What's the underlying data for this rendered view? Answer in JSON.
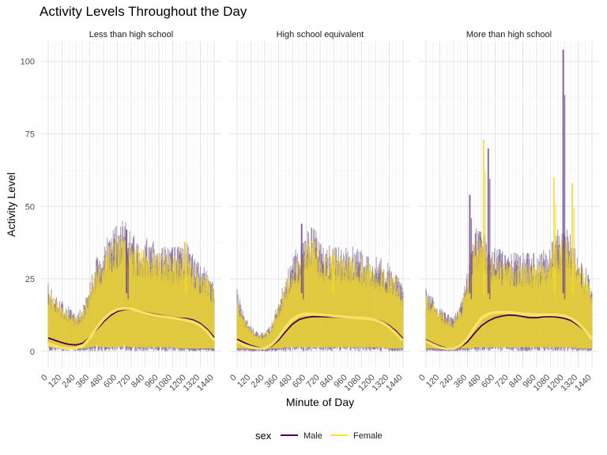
{
  "chart_data": {
    "type": "line",
    "title": "Activity Levels Throughout the Day",
    "xlabel": "Minute of Day",
    "ylabel": "Activity Level",
    "xlim": [
      0,
      1440
    ],
    "ylim": [
      0,
      100
    ],
    "x_ticks": [
      0,
      120,
      240,
      360,
      480,
      600,
      720,
      840,
      960,
      1080,
      1200,
      1320,
      1440
    ],
    "x_tick_labels": [
      "0",
      "120",
      "240",
      "360",
      "480",
      "600",
      "720",
      "840",
      "960",
      "1080",
      "1200",
      "1320",
      "1440"
    ],
    "y_ticks": [
      0,
      25,
      50,
      75,
      100
    ],
    "y_tick_labels": [
      "0",
      "25",
      "50",
      "75",
      "100"
    ],
    "grid": true,
    "legend": {
      "title": "sex",
      "position": "bottom",
      "entries": [
        "Male",
        "Female"
      ]
    },
    "colors": {
      "Male": "#440154",
      "Female": "#fde725",
      "smooth_male": "#440154",
      "smooth_female": "#fde725"
    },
    "panels": [
      {
        "label": "Less than high school",
        "raw_envelope": {
          "x": [
            0,
            60,
            120,
            180,
            240,
            300,
            360,
            420,
            480,
            540,
            600,
            660,
            720,
            780,
            840,
            900,
            960,
            1020,
            1080,
            1140,
            1200,
            1260,
            1320,
            1380,
            1440
          ],
          "upper": [
            22,
            18,
            16,
            14,
            12,
            14,
            22,
            30,
            34,
            38,
            40,
            42,
            38,
            36,
            36,
            35,
            34,
            34,
            33,
            33,
            36,
            30,
            28,
            26,
            22
          ],
          "lower": [
            2,
            2,
            1,
            1,
            1,
            1,
            2,
            3,
            2,
            2,
            2,
            3,
            2,
            2,
            2,
            2,
            2,
            2,
            2,
            1,
            1,
            1,
            1,
            1,
            1
          ],
          "peak_spikes": [
            {
              "x": 680,
              "y": 42
            },
            {
              "x": 1190,
              "y": 38
            }
          ]
        },
        "series": [
          {
            "name": "Male",
            "x": [
              0,
              60,
              120,
              180,
              240,
              300,
              360,
              420,
              480,
              540,
              600,
              660,
              720,
              780,
              840,
              900,
              960,
              1020,
              1080,
              1140,
              1200,
              1260,
              1320,
              1380,
              1440
            ],
            "values": [
              4.6,
              3.8,
              3.0,
              2.4,
              2.2,
              2.8,
              4.8,
              7.5,
              10.2,
              12.4,
              13.8,
              14.4,
              14.5,
              14.1,
              13.5,
              13.0,
              12.6,
              12.2,
              11.8,
              11.5,
              11.3,
              10.8,
              9.6,
              7.6,
              4.8
            ]
          },
          {
            "name": "Female",
            "x": [
              0,
              60,
              120,
              180,
              240,
              300,
              360,
              420,
              480,
              540,
              600,
              660,
              720,
              780,
              840,
              900,
              960,
              1020,
              1080,
              1140,
              1200,
              1260,
              1320,
              1380,
              1440
            ],
            "values": [
              2.6,
              1.8,
              1.2,
              0.9,
              1.0,
              2.0,
              4.6,
              8.0,
              11.0,
              13.2,
              14.4,
              14.8,
              14.6,
              14.0,
              13.3,
              12.7,
              12.3,
              12.0,
              11.6,
              11.2,
              10.8,
              10.2,
              9.0,
              6.9,
              3.9
            ]
          }
        ]
      },
      {
        "label": "High school equivalent",
        "raw_envelope": {
          "x": [
            0,
            60,
            120,
            180,
            240,
            300,
            360,
            420,
            480,
            540,
            600,
            660,
            720,
            780,
            840,
            900,
            960,
            1020,
            1080,
            1140,
            1200,
            1260,
            1320,
            1380,
            1440
          ],
          "upper": [
            20,
            12,
            8,
            6,
            6,
            9,
            16,
            24,
            30,
            34,
            38,
            40,
            35,
            33,
            34,
            34,
            33,
            33,
            32,
            31,
            30,
            29,
            28,
            26,
            20
          ],
          "lower": [
            1,
            1,
            0.5,
            0.5,
            0.5,
            1,
            1,
            2,
            2,
            2,
            2,
            2,
            2,
            2,
            2,
            2,
            2,
            2,
            2,
            2,
            2,
            2,
            1,
            1,
            1
          ],
          "peak_spikes": [
            {
              "x": 560,
              "y": 44
            },
            {
              "x": 830,
              "y": 35
            }
          ]
        },
        "series": [
          {
            "name": "Male",
            "x": [
              0,
              60,
              120,
              180,
              240,
              300,
              360,
              420,
              480,
              540,
              600,
              660,
              720,
              780,
              840,
              900,
              960,
              1020,
              1080,
              1140,
              1200,
              1260,
              1320,
              1380,
              1440
            ],
            "values": [
              4.2,
              3.0,
              2.0,
              1.3,
              1.1,
              1.8,
              3.9,
              6.8,
              9.4,
              11.0,
              11.7,
              12.0,
              12.0,
              11.9,
              11.8,
              11.7,
              11.6,
              11.6,
              11.5,
              11.3,
              11.0,
              10.3,
              8.9,
              6.9,
              4.4
            ]
          },
          {
            "name": "Female",
            "x": [
              0,
              60,
              120,
              180,
              240,
              300,
              360,
              420,
              480,
              540,
              600,
              660,
              720,
              780,
              840,
              900,
              960,
              1020,
              1080,
              1140,
              1200,
              1260,
              1320,
              1380,
              1440
            ],
            "values": [
              3.4,
              2.3,
              1.5,
              1.0,
              1.0,
              2.2,
              4.8,
              8.2,
              11.0,
              12.5,
              12.9,
              12.8,
              12.6,
              12.4,
              12.1,
              11.9,
              11.7,
              11.6,
              11.5,
              11.3,
              10.9,
              10.0,
              8.4,
              6.2,
              3.7
            ]
          }
        ]
      },
      {
        "label": "More than high school",
        "raw_envelope": {
          "x": [
            0,
            60,
            120,
            180,
            240,
            300,
            360,
            420,
            480,
            540,
            600,
            660,
            720,
            780,
            840,
            900,
            960,
            1020,
            1080,
            1140,
            1200,
            1260,
            1320,
            1380,
            1440
          ],
          "upper": [
            20,
            17,
            14,
            12,
            11,
            15,
            26,
            40,
            38,
            35,
            33,
            32,
            31,
            31,
            31,
            31,
            31,
            32,
            34,
            38,
            42,
            36,
            30,
            27,
            22
          ],
          "lower": [
            1,
            1,
            0.5,
            0.5,
            0.5,
            1,
            1,
            2,
            2,
            2,
            2,
            2,
            2,
            2,
            2,
            2,
            2,
            2,
            2,
            2,
            2,
            2,
            1,
            1,
            1
          ],
          "peak_spikes": [
            {
              "x": 380,
              "y": 54
            },
            {
              "x": 500,
              "y": 73
            },
            {
              "x": 540,
              "y": 70
            },
            {
              "x": 1110,
              "y": 60
            },
            {
              "x": 1190,
              "y": 104
            },
            {
              "x": 1270,
              "y": 58
            }
          ]
        },
        "series": [
          {
            "name": "Male",
            "x": [
              0,
              60,
              120,
              180,
              240,
              300,
              360,
              420,
              480,
              540,
              600,
              660,
              720,
              780,
              840,
              900,
              960,
              1020,
              1080,
              1140,
              1200,
              1260,
              1320,
              1380,
              1440
            ],
            "values": [
              4.0,
              2.8,
              1.8,
              1.1,
              0.9,
              1.5,
              3.3,
              6.2,
              8.8,
              10.5,
              11.6,
              12.2,
              12.5,
              12.4,
              12.0,
              11.6,
              11.6,
              11.9,
              12.0,
              11.8,
              11.4,
              10.6,
              9.0,
              7.0,
              4.5
            ]
          },
          {
            "name": "Female",
            "x": [
              0,
              60,
              120,
              180,
              240,
              300,
              360,
              420,
              480,
              540,
              600,
              660,
              720,
              780,
              840,
              900,
              960,
              1020,
              1080,
              1140,
              1200,
              1260,
              1320,
              1380,
              1440
            ],
            "values": [
              3.6,
              2.4,
              1.4,
              0.9,
              0.9,
              1.9,
              4.4,
              8.3,
              11.4,
              12.9,
              13.4,
              13.5,
              13.4,
              13.2,
              12.9,
              12.7,
              12.6,
              12.6,
              12.6,
              12.5,
              12.2,
              11.3,
              9.6,
              7.2,
              4.4
            ]
          }
        ]
      }
    ]
  }
}
